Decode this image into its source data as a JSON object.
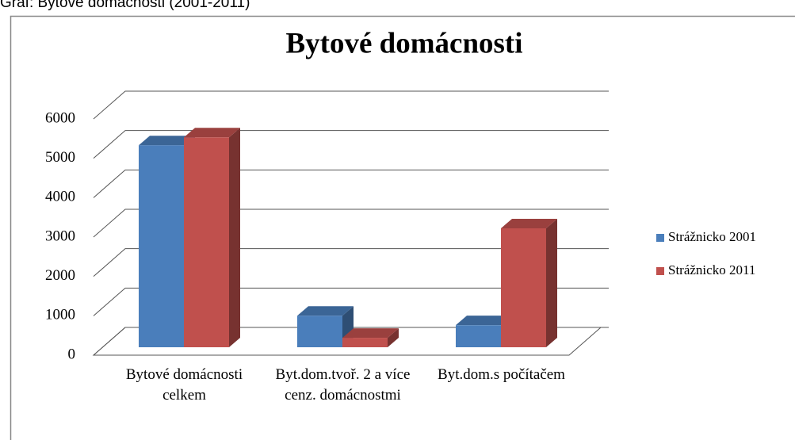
{
  "caption": "Graf: Bytové domácnosti (2001-2011)",
  "chart_data": {
    "type": "bar3d",
    "title": "Bytové domácnosti",
    "categories": [
      "Bytové domácnosti celkem",
      "Byt.dom.tvoř. 2 a více cenz. domácnostmi",
      "Byt.dom.s počítačem"
    ],
    "series": [
      {
        "name": "Strážnicko 2001",
        "color": "#4a7ebb",
        "values": [
          5130,
          800,
          560
        ]
      },
      {
        "name": "Strážnicko 2011",
        "color": "#c0504d",
        "values": [
          5330,
          240,
          3020
        ]
      }
    ],
    "ylim": [
      0,
      6000
    ],
    "yticks": [
      0,
      1000,
      2000,
      3000,
      4000,
      5000,
      6000
    ],
    "grid": true,
    "legend": "right"
  }
}
